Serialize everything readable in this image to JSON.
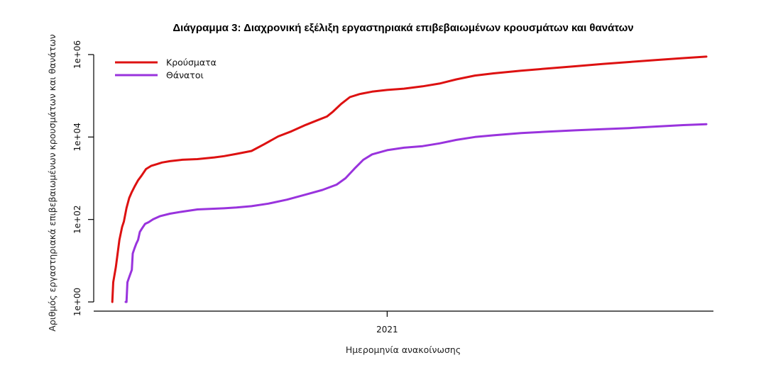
{
  "chart_data": {
    "type": "line",
    "title": "Διάγραμμα 3: Διαχρονική εξέλιξη εργαστηριακά επιβεβαιωμένων κρουσμάτων και θανάτων",
    "xlabel": "Ημερομηνία ανακοίνωσης",
    "ylabel": "Αριθμός εργαστηριακά επιβεβαιωμένων κρουσμάτων και θανάτων",
    "x_ticks": [
      "2021"
    ],
    "y_ticks": [
      "1e+00",
      "1e+02",
      "1e+04",
      "1e+06"
    ],
    "y_scale": "log",
    "ylim": [
      1,
      1000000
    ],
    "xlim": [
      "2020-02-13",
      "2021-12-31"
    ],
    "grid": false,
    "legend_position": "top-left",
    "series": [
      {
        "name": "Κρούσματα",
        "color": "#dd1111",
        "points": [
          [
            "2020-02-26",
            1
          ],
          [
            "2020-02-27",
            3
          ],
          [
            "2020-03-01",
            7
          ],
          [
            "2020-03-05",
            32
          ],
          [
            "2020-03-08",
            66
          ],
          [
            "2020-03-10",
            89
          ],
          [
            "2020-03-13",
            190
          ],
          [
            "2020-03-16",
            331
          ],
          [
            "2020-03-19",
            464
          ],
          [
            "2020-03-22",
            624
          ],
          [
            "2020-03-26",
            892
          ],
          [
            "2020-03-30",
            1156
          ],
          [
            "2020-04-04",
            1673
          ],
          [
            "2020-04-10",
            2011
          ],
          [
            "2020-04-16",
            2192
          ],
          [
            "2020-04-22",
            2408
          ],
          [
            "2020-05-01",
            2591
          ],
          [
            "2020-05-15",
            2810
          ],
          [
            "2020-06-01",
            2917
          ],
          [
            "2020-06-20",
            3203
          ],
          [
            "2020-07-01",
            3432
          ],
          [
            "2020-07-15",
            3910
          ],
          [
            "2020-08-01",
            4587
          ],
          [
            "2020-08-15",
            6632
          ],
          [
            "2020-08-31",
            10317
          ],
          [
            "2020-09-15",
            13730
          ],
          [
            "2020-10-01",
            19613
          ],
          [
            "2020-10-15",
            25902
          ],
          [
            "2020-10-25",
            31496
          ],
          [
            "2020-11-01",
            41527
          ],
          [
            "2020-11-10",
            63321
          ],
          [
            "2020-11-20",
            93066
          ],
          [
            "2020-12-01",
            110322
          ],
          [
            "2020-12-15",
            126372
          ],
          [
            "2021-01-01",
            138850
          ],
          [
            "2021-01-20",
            148750
          ],
          [
            "2021-02-10",
            170000
          ],
          [
            "2021-03-01",
            198000
          ],
          [
            "2021-03-20",
            250000
          ],
          [
            "2021-04-10",
            310000
          ],
          [
            "2021-05-01",
            350000
          ],
          [
            "2021-06-01",
            405000
          ],
          [
            "2021-07-01",
            460000
          ],
          [
            "2021-08-01",
            520000
          ],
          [
            "2021-09-01",
            590000
          ],
          [
            "2021-10-01",
            660000
          ],
          [
            "2021-11-01",
            740000
          ],
          [
            "2021-12-01",
            820000
          ],
          [
            "2021-12-27",
            890000
          ]
        ]
      },
      {
        "name": "Θάνατοι",
        "color": "#9933dd",
        "points": [
          [
            "2020-03-12",
            1
          ],
          [
            "2020-03-13",
            1
          ],
          [
            "2020-03-14",
            3
          ],
          [
            "2020-03-16",
            4
          ],
          [
            "2020-03-19",
            6
          ],
          [
            "2020-03-20",
            15
          ],
          [
            "2020-03-22",
            20
          ],
          [
            "2020-03-24",
            26
          ],
          [
            "2020-03-26",
            32
          ],
          [
            "2020-03-28",
            50
          ],
          [
            "2020-03-31",
            63
          ],
          [
            "2020-04-03",
            78
          ],
          [
            "2020-04-07",
            86
          ],
          [
            "2020-04-12",
            101
          ],
          [
            "2020-04-20",
            121
          ],
          [
            "2020-05-01",
            138
          ],
          [
            "2020-05-15",
            155
          ],
          [
            "2020-06-01",
            175
          ],
          [
            "2020-07-01",
            187
          ],
          [
            "2020-07-15",
            195
          ],
          [
            "2020-08-01",
            210
          ],
          [
            "2020-08-20",
            242
          ],
          [
            "2020-09-10",
            302
          ],
          [
            "2020-10-01",
            400
          ],
          [
            "2020-10-20",
            520
          ],
          [
            "2020-11-05",
            700
          ],
          [
            "2020-11-15",
            1000
          ],
          [
            "2020-11-25",
            1700
          ],
          [
            "2020-12-05",
            2800
          ],
          [
            "2020-12-15",
            3800
          ],
          [
            "2021-01-01",
            4800
          ],
          [
            "2021-01-20",
            5500
          ],
          [
            "2021-02-10",
            6000
          ],
          [
            "2021-03-01",
            7000
          ],
          [
            "2021-03-20",
            8500
          ],
          [
            "2021-04-10",
            10000
          ],
          [
            "2021-05-01",
            11000
          ],
          [
            "2021-06-01",
            12500
          ],
          [
            "2021-07-01",
            13500
          ],
          [
            "2021-08-01",
            14500
          ],
          [
            "2021-09-01",
            15500
          ],
          [
            "2021-10-01",
            16500
          ],
          [
            "2021-11-01",
            18000
          ],
          [
            "2021-12-01",
            19500
          ],
          [
            "2021-12-27",
            20500
          ]
        ]
      }
    ]
  }
}
